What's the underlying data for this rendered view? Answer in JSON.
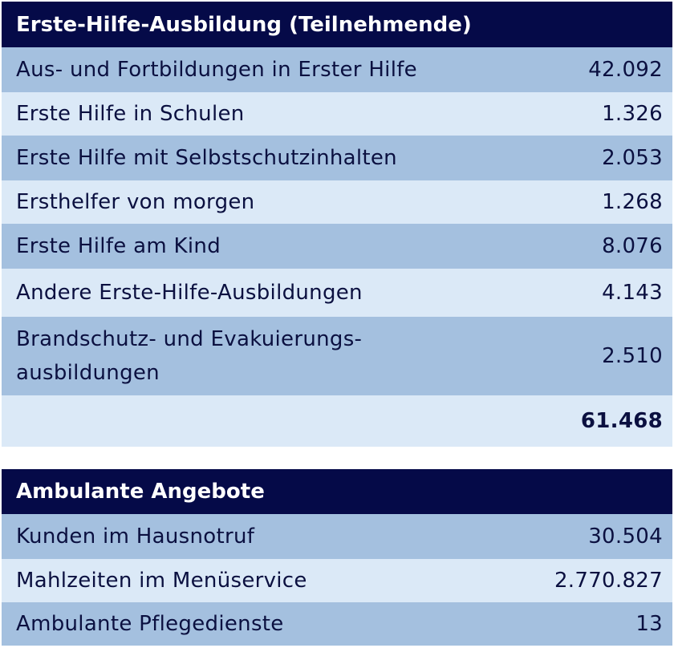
{
  "table1": {
    "title": "Erste-Hilfe-Ausbildung (Teilnehmende)",
    "rows": [
      {
        "label": "Aus- und Fortbildungen in Erster Hilfe",
        "value": "42.092"
      },
      {
        "label": "Erste Hilfe in Schulen",
        "value": "1.326"
      },
      {
        "label": "Erste Hilfe mit Selbstschutzinhalten",
        "value": "2.053"
      },
      {
        "label": "Ersthelfer von morgen",
        "value": "1.268"
      },
      {
        "label": "Erste Hilfe am Kind",
        "value": "8.076"
      },
      {
        "label": "Andere Erste-Hilfe-Ausbildungen",
        "value": "4.143"
      },
      {
        "label_line1": "Brandschutz- und Evakuierungs-",
        "label_line2": "ausbildungen",
        "value": "2.510"
      }
    ],
    "total": "61.468"
  },
  "table2": {
    "title": "Ambulante Angebote",
    "rows": [
      {
        "label": "Kunden im Hausnotruf",
        "value": "30.504"
      },
      {
        "label": "Mahlzeiten im Menüservice",
        "value": "2.770.827"
      },
      {
        "label": "Ambulante Pflegedienste",
        "value": "13"
      }
    ]
  }
}
